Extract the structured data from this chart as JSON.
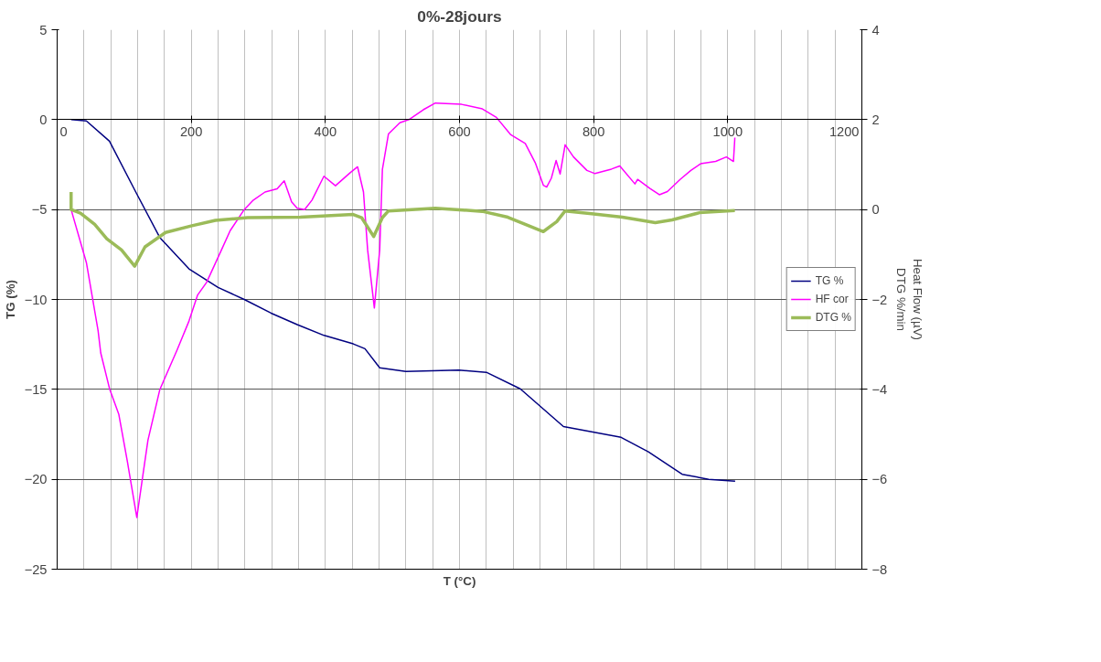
{
  "chart_data": {
    "type": "line",
    "title": "0%-28jours",
    "xlabel": "T (°C)",
    "ylabel": "TG (%)",
    "y2label": "Heat Flow (µV)\nDTG %/min",
    "xlim": [
      0,
      1200
    ],
    "xticks": [
      0,
      200,
      400,
      600,
      800,
      1000,
      1200
    ],
    "ylim": [
      -25,
      5
    ],
    "yticks": [
      -25,
      -20,
      -15,
      -10,
      -5,
      0,
      5
    ],
    "y2lim": [
      -8,
      4
    ],
    "y2ticks": [
      -8,
      -6,
      -4,
      -2,
      0,
      2,
      4
    ],
    "grid": true,
    "legend": "right",
    "line_style": "solid",
    "series": [
      {
        "name": "TG %",
        "color": "#000080",
        "x": [
          20.8,
          43.6,
          78,
          117.6,
          153,
          196.6,
          240,
          279,
          319,
          358,
          398,
          441.5,
          459,
          481,
          520,
          599,
          640,
          690.6,
          755,
          841,
          881.6,
          932,
          971.5,
          1011
        ],
        "values": [
          0,
          -0.07,
          -1.2,
          -4.05,
          -6.55,
          -8.3,
          -9.33,
          -10.0,
          -10.76,
          -11.4,
          -12.0,
          -12.47,
          -12.74,
          -13.8,
          -14.0,
          -13.93,
          -14.05,
          -14.97,
          -17.07,
          -17.67,
          -18.47,
          -19.72,
          -20.0,
          -20.1
        ]
      },
      {
        "name": "HF cor",
        "color": "#ff00ff",
        "axis": "y2",
        "x": [
          20.8,
          43.6,
          61,
          65,
          78.4,
          92,
          105,
          118.8,
          128.5,
          135.4,
          153,
          179,
          196.6,
          209.5,
          222.8,
          245,
          258,
          279,
          292.6,
          310,
          328,
          338.6,
          349.6,
          358,
          369,
          380,
          397.8,
          415,
          437,
          448,
          456.8,
          463,
          473,
          481,
          485,
          494,
          511,
          524.5,
          546,
          564,
          603,
          634,
          655,
          676,
          698,
          713,
          725,
          730,
          737,
          744,
          750,
          757.5,
          770,
          790,
          802,
          826.6,
          839,
          861.6,
          865.6,
          884,
          898,
          910,
          929,
          945,
          959.6,
          982,
          998,
          1008.5,
          1010.6
        ],
        "values": [
          0,
          -1.18,
          -2.69,
          -3.19,
          -4.0,
          -4.56,
          -5.63,
          -6.85,
          -5.84,
          -5.13,
          -4.01,
          -3.12,
          -2.48,
          -1.9,
          -1.62,
          -0.9,
          -0.47,
          0.0,
          0.21,
          0.39,
          0.46,
          0.64,
          0.17,
          0.03,
          0,
          0.21,
          0.74,
          0.53,
          0.82,
          0.95,
          0.39,
          -0.9,
          -2.19,
          -0.9,
          0.89,
          1.68,
          1.93,
          2.0,
          2.22,
          2.37,
          2.34,
          2.24,
          2.05,
          1.67,
          1.47,
          1.04,
          0.54,
          0.5,
          0.7,
          1.09,
          0.79,
          1.44,
          1.17,
          0.87,
          0.8,
          0.9,
          0.97,
          0.57,
          0.67,
          0.47,
          0.33,
          0.4,
          0.67,
          0.87,
          1.02,
          1.07,
          1.17,
          1.07,
          1.6
        ]
      },
      {
        "name": "DTG %",
        "color": "#9bbb59",
        "axis": "y2",
        "x": [
          20.8,
          20.8,
          34.8,
          56,
          74,
          96,
          115.6,
          131,
          161.6,
          201,
          236,
          284,
          362.6,
          441.5,
          454,
          472,
          485,
          494,
          564,
          634,
          672,
          725,
          745,
          757.5,
          794,
          843,
          892,
          917,
          958,
          1010.6
        ],
        "values": [
          0.39,
          0,
          -0.08,
          -0.33,
          -0.65,
          -0.9,
          -1.26,
          -0.83,
          -0.51,
          -0.36,
          -0.24,
          -0.18,
          -0.17,
          -0.11,
          -0.18,
          -0.6,
          -0.18,
          -0.03,
          0.03,
          -0.04,
          -0.17,
          -0.49,
          -0.27,
          -0.03,
          -0.09,
          -0.17,
          -0.29,
          -0.23,
          -0.07,
          -0.02
        ]
      }
    ]
  }
}
